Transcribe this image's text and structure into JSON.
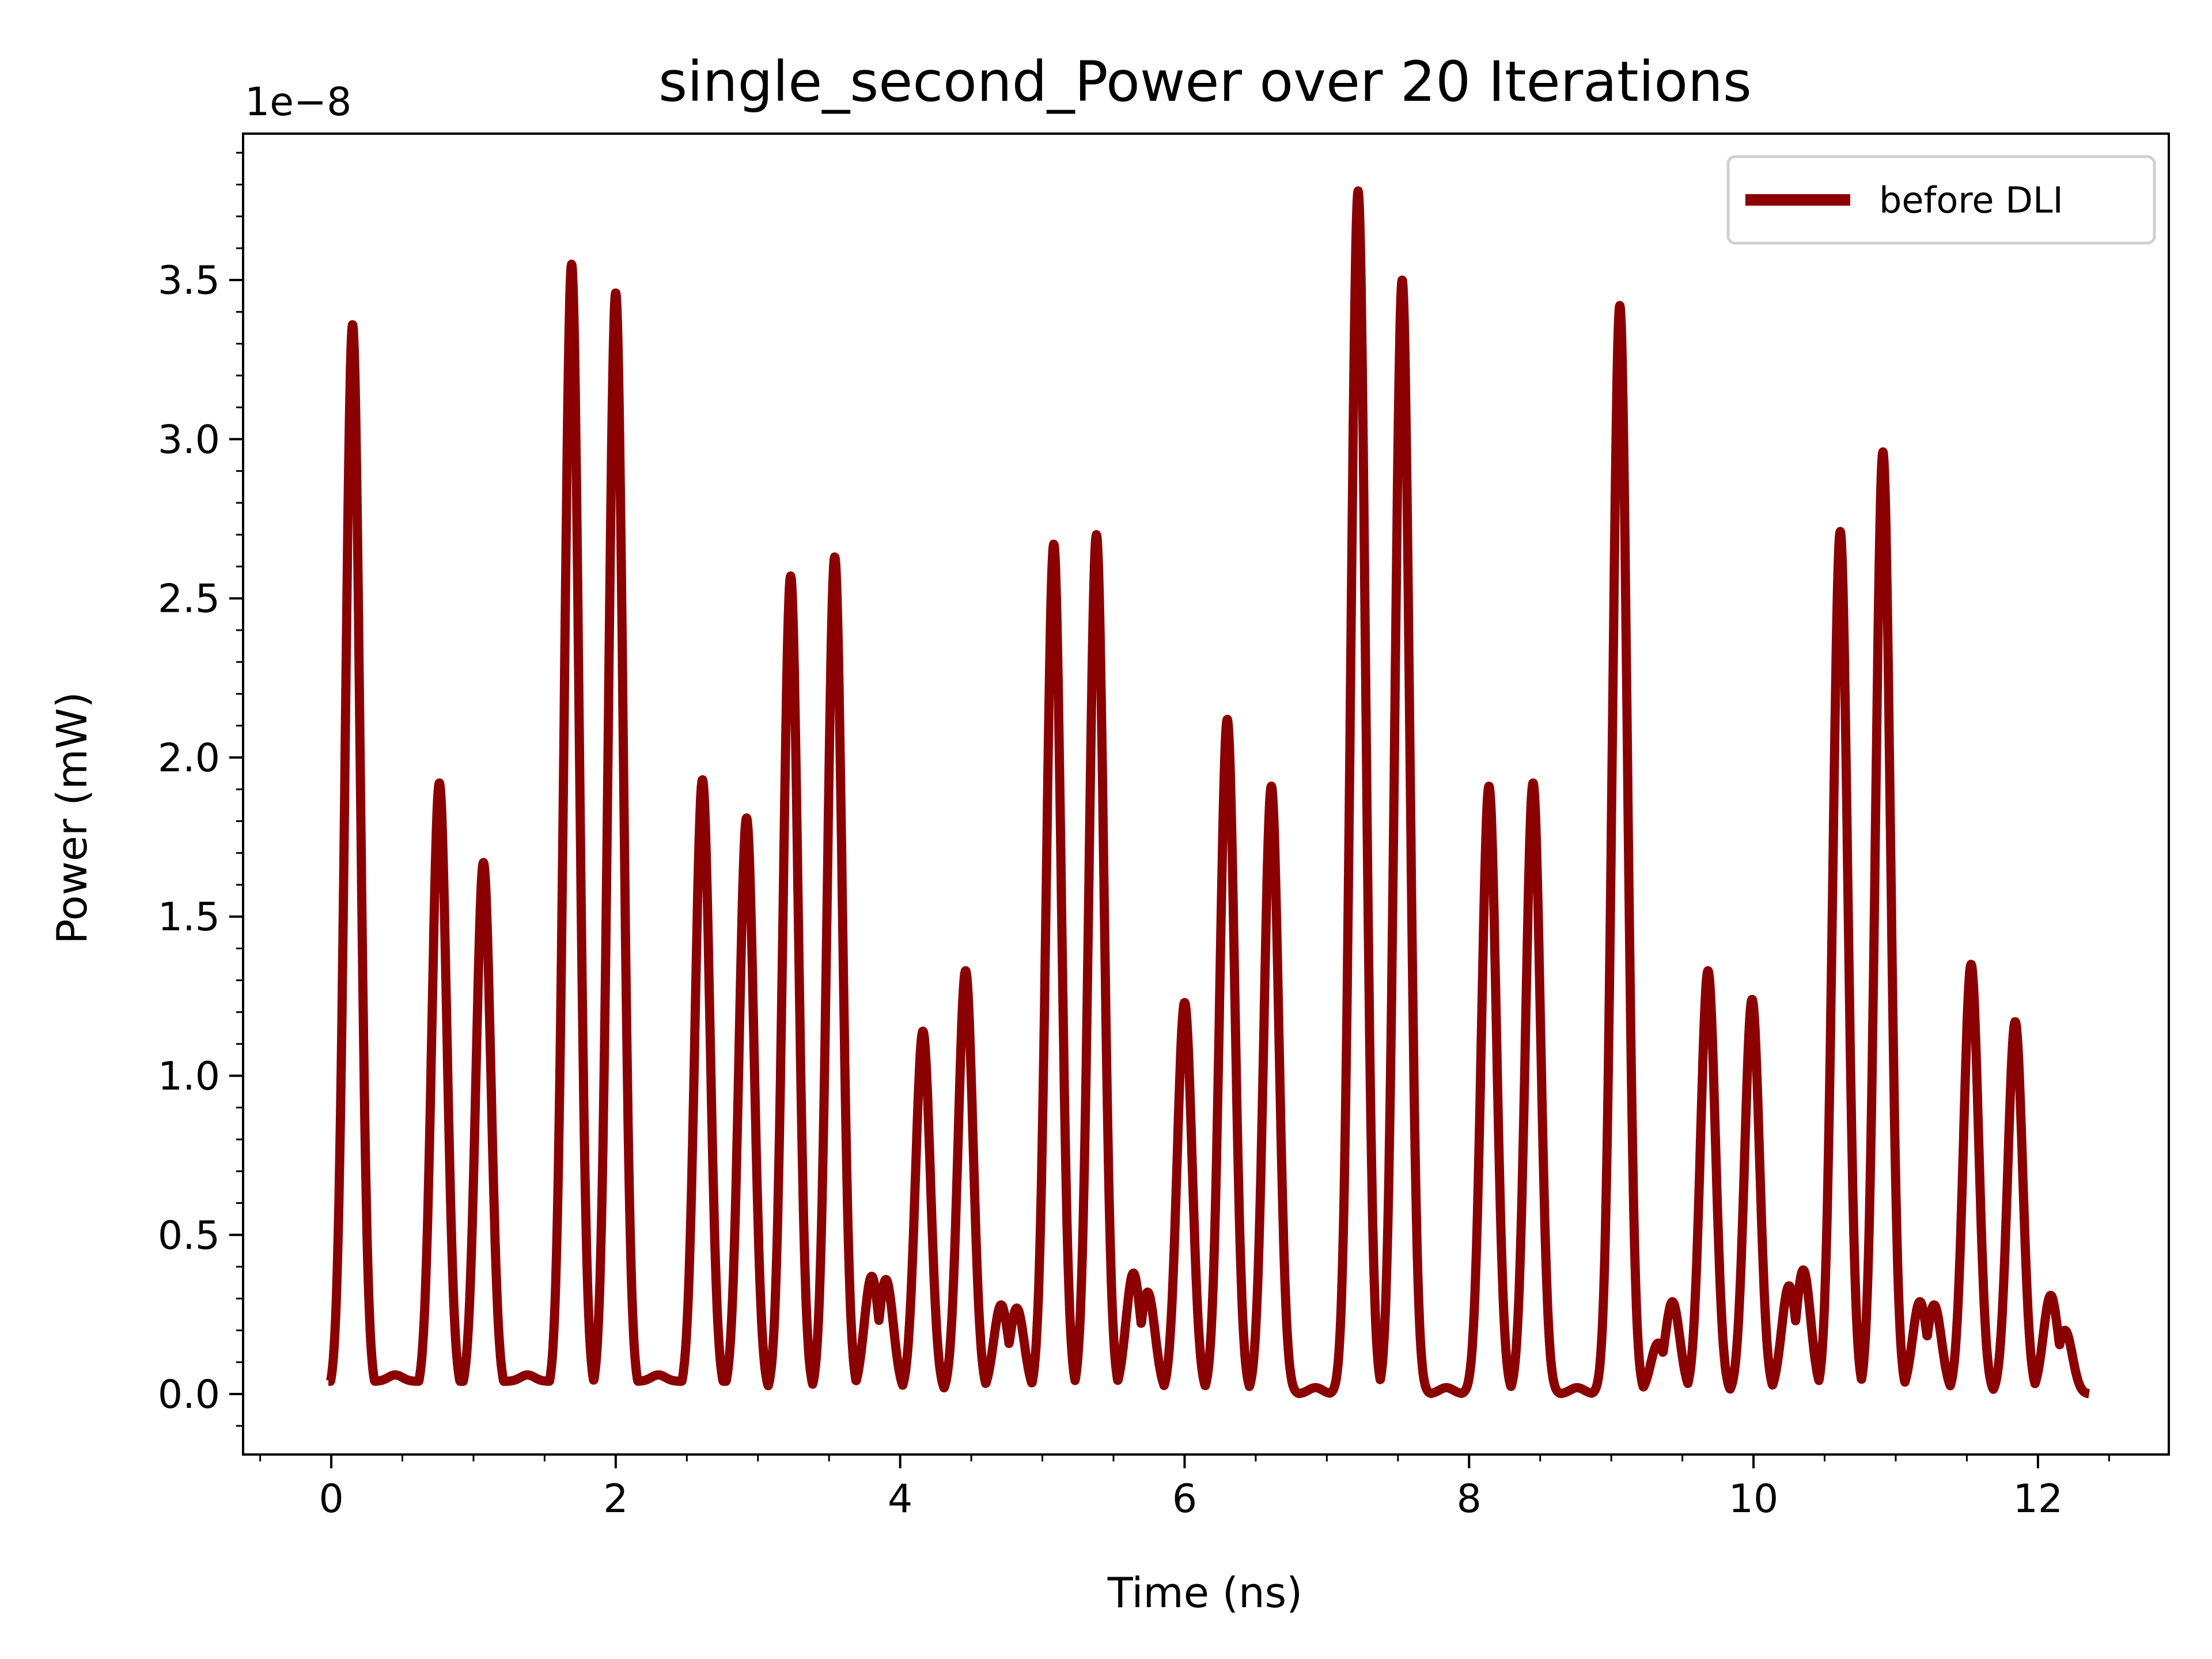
{
  "chart_data": {
    "type": "line",
    "title": "single_second_Power over 20 Iterations",
    "xlabel": "Time (ns)",
    "ylabel": "Power (mW)",
    "y_offset_label": "1e−8",
    "xlim": [
      -0.62,
      12.92
    ],
    "ylim": [
      -0.19,
      3.96
    ],
    "x_ticks": [
      0,
      2,
      4,
      6,
      8,
      10,
      12
    ],
    "x_tick_labels": [
      "0",
      "2",
      "4",
      "6",
      "8",
      "10",
      "12"
    ],
    "y_ticks": [
      0.0,
      0.5,
      1.0,
      1.5,
      2.0,
      2.5,
      3.0,
      3.5
    ],
    "y_tick_labels": [
      "0.0",
      "0.5",
      "1.0",
      "1.5",
      "2.0",
      "2.5",
      "3.0",
      "3.5"
    ],
    "grid": false,
    "legend_position": "top-right",
    "series": [
      {
        "name": "before DLI",
        "color": "#8b0000",
        "x_range": [
          -0.02,
          12.36
        ],
        "baseline_segments": [
          {
            "x": [
              -0.02,
              3.05
            ],
            "y": 0.04
          },
          {
            "x": [
              3.08,
              9.25
            ],
            "y": 0.0
          },
          {
            "x": [
              9.28,
              12.36
            ],
            "y": 0.0
          }
        ],
        "peaks": [
          {
            "x": 0.15,
            "y": 3.36
          },
          {
            "x": 0.76,
            "y": 1.92
          },
          {
            "x": 1.07,
            "y": 1.67
          },
          {
            "x": 1.69,
            "y": 3.55
          },
          {
            "x": 2.0,
            "y": 3.46
          },
          {
            "x": 2.61,
            "y": 1.93
          },
          {
            "x": 2.92,
            "y": 1.81
          },
          {
            "x": 3.23,
            "y": 2.57
          },
          {
            "x": 3.54,
            "y": 2.63
          },
          {
            "x": 3.8,
            "y": 0.37
          },
          {
            "x": 3.9,
            "y": 0.36
          },
          {
            "x": 4.16,
            "y": 1.14
          },
          {
            "x": 4.46,
            "y": 1.33
          },
          {
            "x": 4.71,
            "y": 0.28
          },
          {
            "x": 4.82,
            "y": 0.27
          },
          {
            "x": 5.08,
            "y": 2.67
          },
          {
            "x": 5.38,
            "y": 2.7
          },
          {
            "x": 5.64,
            "y": 0.38
          },
          {
            "x": 5.74,
            "y": 0.32
          },
          {
            "x": 6.0,
            "y": 1.23
          },
          {
            "x": 6.3,
            "y": 2.12
          },
          {
            "x": 6.61,
            "y": 1.91
          },
          {
            "x": 7.22,
            "y": 3.78
          },
          {
            "x": 7.53,
            "y": 3.5
          },
          {
            "x": 8.14,
            "y": 1.91
          },
          {
            "x": 8.45,
            "y": 1.92
          },
          {
            "x": 9.06,
            "y": 3.42
          },
          {
            "x": 9.33,
            "y": 0.16
          },
          {
            "x": 9.43,
            "y": 0.29
          },
          {
            "x": 9.68,
            "y": 1.33
          },
          {
            "x": 9.99,
            "y": 1.24
          },
          {
            "x": 10.25,
            "y": 0.34
          },
          {
            "x": 10.35,
            "y": 0.39
          },
          {
            "x": 10.61,
            "y": 2.71
          },
          {
            "x": 10.91,
            "y": 2.96
          },
          {
            "x": 11.17,
            "y": 0.29
          },
          {
            "x": 11.27,
            "y": 0.28
          },
          {
            "x": 11.53,
            "y": 1.35
          },
          {
            "x": 11.84,
            "y": 1.17
          },
          {
            "x": 12.09,
            "y": 0.31
          },
          {
            "x": 12.19,
            "y": 0.2
          }
        ],
        "ripples": [
          {
            "x": 0.45,
            "y": 0.06
          },
          {
            "x": 1.38,
            "y": 0.06
          },
          {
            "x": 2.3,
            "y": 0.06
          },
          {
            "x": 6.92,
            "y": 0.06
          },
          {
            "x": 7.84,
            "y": 0.06
          },
          {
            "x": 8.76,
            "y": 0.06
          }
        ]
      }
    ]
  }
}
